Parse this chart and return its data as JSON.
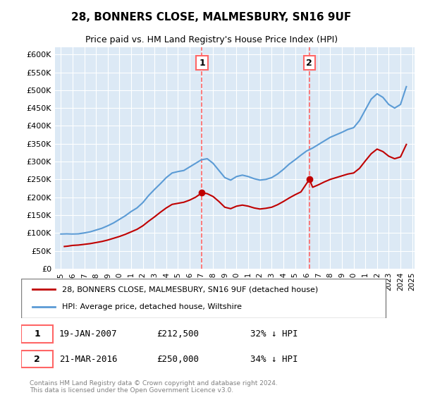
{
  "title": "28, BONNERS CLOSE, MALMESBURY, SN16 9UF",
  "subtitle": "Price paid vs. HM Land Registry's House Price Index (HPI)",
  "footer": "Contains HM Land Registry data © Crown copyright and database right 2024.\nThis data is licensed under the Open Government Licence v3.0.",
  "legend_line1": "28, BONNERS CLOSE, MALMESBURY, SN16 9UF (detached house)",
  "legend_line2": "HPI: Average price, detached house, Wiltshire",
  "annotation1_label": "1",
  "annotation1_date": "19-JAN-2007",
  "annotation1_price": "£212,500",
  "annotation1_hpi": "32% ↓ HPI",
  "annotation1_year": 2007.05,
  "annotation1_value": 212500,
  "annotation2_label": "2",
  "annotation2_date": "21-MAR-2016",
  "annotation2_price": "£250,000",
  "annotation2_hpi": "34% ↓ HPI",
  "annotation2_year": 2016.22,
  "annotation2_value": 250000,
  "hpi_color": "#5b9bd5",
  "price_color": "#c00000",
  "vline_color": "#ff6666",
  "background_plot": "#dce9f5",
  "ylim": [
    0,
    620000
  ],
  "yticks": [
    0,
    50000,
    100000,
    150000,
    200000,
    250000,
    300000,
    350000,
    400000,
    450000,
    500000,
    550000,
    600000
  ],
  "ytick_labels": [
    "£0",
    "£50K",
    "£100K",
    "£150K",
    "£200K",
    "£250K",
    "£300K",
    "£350K",
    "£400K",
    "£450K",
    "£500K",
    "£550K",
    "£600K"
  ],
  "hpi_years": [
    1995,
    1995.5,
    1996,
    1996.5,
    1997,
    1997.5,
    1998,
    1998.5,
    1999,
    1999.5,
    2000,
    2000.5,
    2001,
    2001.5,
    2002,
    2002.5,
    2003,
    2003.5,
    2004,
    2004.5,
    2005,
    2005.5,
    2006,
    2006.5,
    2007,
    2007.5,
    2008,
    2008.5,
    2009,
    2009.5,
    2010,
    2010.5,
    2011,
    2011.5,
    2012,
    2012.5,
    2013,
    2013.5,
    2014,
    2014.5,
    2015,
    2015.5,
    2016,
    2016.5,
    2017,
    2017.5,
    2018,
    2018.5,
    2019,
    2019.5,
    2020,
    2020.5,
    2021,
    2021.5,
    2022,
    2022.5,
    2023,
    2023.5,
    2024,
    2024.5
  ],
  "hpi_values": [
    97000,
    97500,
    97000,
    97500,
    100000,
    103000,
    108000,
    113000,
    120000,
    128000,
    138000,
    148000,
    160000,
    170000,
    185000,
    205000,
    222000,
    238000,
    255000,
    268000,
    272000,
    275000,
    285000,
    295000,
    305000,
    308000,
    295000,
    275000,
    255000,
    248000,
    258000,
    262000,
    258000,
    252000,
    248000,
    250000,
    255000,
    265000,
    278000,
    293000,
    305000,
    318000,
    330000,
    338000,
    348000,
    358000,
    368000,
    375000,
    382000,
    390000,
    395000,
    415000,
    445000,
    475000,
    490000,
    480000,
    460000,
    450000,
    460000,
    510000
  ],
  "price_years": [
    1995.3,
    1995.6,
    1996,
    1996.5,
    1997,
    1997.5,
    1998,
    1998.5,
    1999,
    1999.5,
    2000,
    2000.5,
    2001,
    2001.5,
    2002,
    2002.5,
    2003,
    2003.5,
    2004,
    2004.5,
    2005,
    2005.5,
    2006,
    2006.5,
    2007.05,
    2007.5,
    2008,
    2008.5,
    2009,
    2009.5,
    2010,
    2010.5,
    2011,
    2011.5,
    2012,
    2012.5,
    2013,
    2013.5,
    2014,
    2014.5,
    2015,
    2015.5,
    2016.22,
    2016.5,
    2017,
    2017.5,
    2018,
    2018.5,
    2019,
    2019.5,
    2020,
    2020.5,
    2021,
    2021.5,
    2022,
    2022.5,
    2023,
    2023.5,
    2024,
    2024.5
  ],
  "price_values": [
    62000,
    63000,
    65000,
    66000,
    68000,
    70000,
    73000,
    76000,
    80000,
    85000,
    90000,
    96000,
    103000,
    110000,
    120000,
    133000,
    145000,
    158000,
    170000,
    180000,
    183000,
    186000,
    192000,
    200000,
    212500,
    210000,
    202000,
    188000,
    172000,
    168000,
    175000,
    178000,
    175000,
    170000,
    167000,
    169000,
    172000,
    179000,
    188000,
    198000,
    207000,
    215000,
    250000,
    228000,
    235000,
    243000,
    250000,
    255000,
    260000,
    265000,
    268000,
    281000,
    302000,
    322000,
    335000,
    328000,
    315000,
    308000,
    313000,
    348000
  ]
}
